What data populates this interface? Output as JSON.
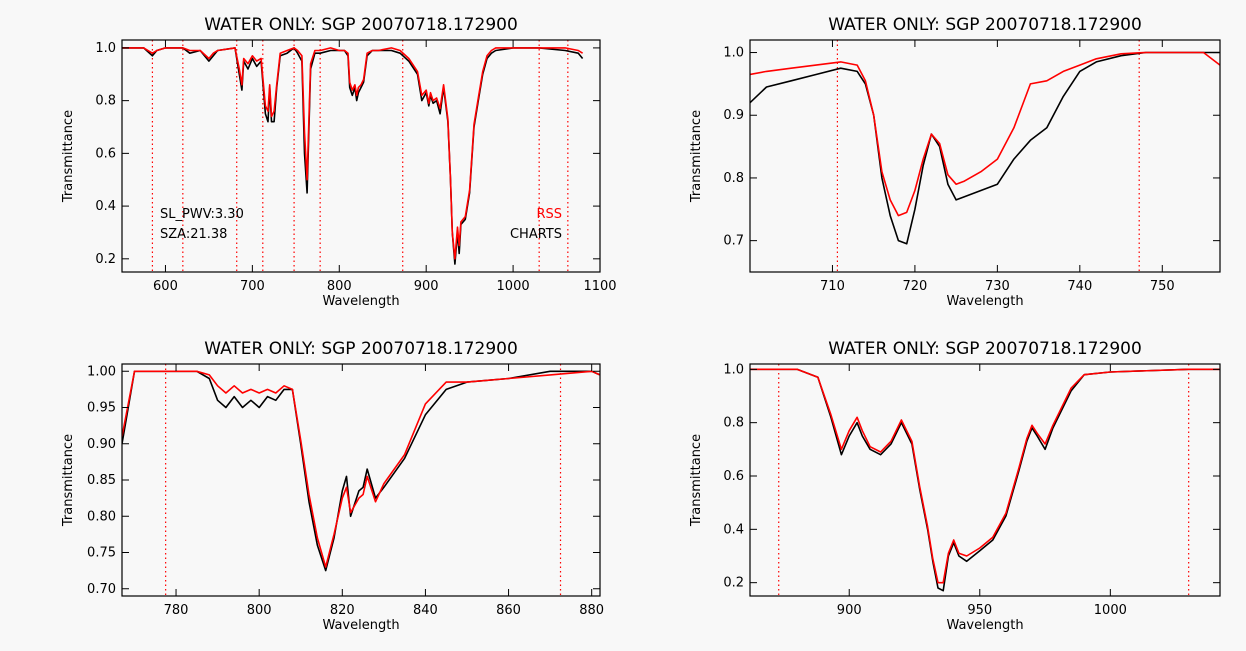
{
  "chart_data": [
    {
      "type": "line",
      "title": "WATER ONLY: SGP 20070718.172900",
      "xlabel": "Wavelength",
      "ylabel": "Transmittance",
      "xlim": [
        550,
        1100
      ],
      "ylim": [
        0.15,
        1.03
      ],
      "xticks": [
        "600",
        "700",
        "800",
        "900",
        "1000",
        "1100"
      ],
      "yticks": [
        "0.2",
        "0.4",
        "0.6",
        "0.8",
        "1.0"
      ],
      "vlines": [
        585,
        620,
        682,
        712,
        748,
        778,
        873,
        1030,
        1063
      ],
      "annotations": [
        {
          "text": "SL_PWV:3.30",
          "color": "#000000",
          "anchor": "left"
        },
        {
          "text": "SZA:21.38",
          "color": "#000000",
          "anchor": "left"
        },
        {
          "text": "RSS",
          "color": "#ff0000",
          "anchor": "right"
        },
        {
          "text": "CHARTS",
          "color": "#000000",
          "anchor": "right"
        }
      ],
      "series": [
        {
          "name": "CHARTS",
          "color": "#000000",
          "x": [
            550,
            575,
            585,
            590,
            600,
            620,
            628,
            640,
            650,
            655,
            660,
            680,
            685,
            688,
            690,
            695,
            700,
            705,
            710,
            715,
            718,
            720,
            722,
            725,
            728,
            732,
            740,
            748,
            752,
            757,
            760,
            763,
            767,
            772,
            778,
            790,
            800,
            806,
            810,
            812,
            815,
            818,
            820,
            822,
            825,
            828,
            832,
            838,
            845,
            860,
            870,
            880,
            890,
            895,
            900,
            903,
            905,
            908,
            912,
            916,
            920,
            925,
            928,
            930,
            933,
            936,
            938,
            940,
            945,
            950,
            955,
            960,
            965,
            970,
            975,
            980,
            1000,
            1030,
            1060,
            1075,
            1080
          ],
          "y": [
            1.0,
            1.0,
            0.97,
            0.99,
            1.0,
            1.0,
            0.98,
            0.99,
            0.95,
            0.97,
            0.99,
            1.0,
            0.9,
            0.84,
            0.95,
            0.92,
            0.96,
            0.93,
            0.95,
            0.75,
            0.72,
            0.85,
            0.72,
            0.72,
            0.85,
            0.97,
            0.98,
            1.0,
            0.98,
            0.95,
            0.6,
            0.45,
            0.92,
            0.98,
            0.98,
            0.99,
            0.99,
            0.99,
            0.97,
            0.85,
            0.82,
            0.85,
            0.8,
            0.83,
            0.85,
            0.87,
            0.97,
            0.99,
            0.99,
            0.99,
            0.98,
            0.95,
            0.9,
            0.8,
            0.83,
            0.78,
            0.82,
            0.79,
            0.8,
            0.75,
            0.85,
            0.72,
            0.5,
            0.3,
            0.18,
            0.3,
            0.22,
            0.33,
            0.35,
            0.45,
            0.7,
            0.8,
            0.9,
            0.96,
            0.98,
            0.99,
            1.0,
            1.0,
            0.99,
            0.98,
            0.96
          ]
        },
        {
          "name": "RSS",
          "color": "#ff0000",
          "x": [
            550,
            575,
            585,
            590,
            600,
            620,
            628,
            640,
            650,
            655,
            660,
            680,
            685,
            688,
            690,
            695,
            700,
            705,
            710,
            715,
            718,
            720,
            722,
            725,
            728,
            732,
            740,
            748,
            752,
            757,
            760,
            763,
            767,
            772,
            778,
            790,
            800,
            806,
            810,
            812,
            815,
            818,
            820,
            822,
            825,
            828,
            832,
            838,
            845,
            860,
            870,
            880,
            890,
            895,
            900,
            903,
            905,
            908,
            912,
            916,
            920,
            925,
            928,
            930,
            933,
            936,
            938,
            940,
            945,
            950,
            955,
            960,
            965,
            970,
            975,
            980,
            1000,
            1030,
            1060,
            1075,
            1080
          ],
          "y": [
            1.0,
            1.0,
            0.98,
            0.99,
            1.0,
            1.0,
            0.99,
            0.99,
            0.96,
            0.98,
            0.99,
            1.0,
            0.92,
            0.86,
            0.96,
            0.94,
            0.97,
            0.95,
            0.96,
            0.78,
            0.76,
            0.86,
            0.74,
            0.76,
            0.86,
            0.98,
            0.99,
            1.0,
            0.99,
            0.97,
            0.68,
            0.5,
            0.94,
            0.99,
            0.99,
            1.0,
            0.99,
            0.99,
            0.98,
            0.87,
            0.84,
            0.86,
            0.82,
            0.85,
            0.86,
            0.88,
            0.98,
            0.99,
            0.99,
            1.0,
            0.99,
            0.96,
            0.91,
            0.82,
            0.84,
            0.79,
            0.83,
            0.8,
            0.81,
            0.77,
            0.86,
            0.73,
            0.5,
            0.3,
            0.2,
            0.32,
            0.25,
            0.34,
            0.36,
            0.46,
            0.71,
            0.81,
            0.91,
            0.97,
            0.99,
            1.0,
            1.0,
            1.0,
            1.0,
            0.99,
            0.98
          ]
        }
      ]
    },
    {
      "type": "line",
      "title": "WATER ONLY: SGP 20070718.172900",
      "xlabel": "Wavelength",
      "ylabel": "Transmittance",
      "xlim": [
        700,
        757
      ],
      "ylim": [
        0.65,
        1.02
      ],
      "xticks": [
        "710",
        "720",
        "730",
        "740",
        "750"
      ],
      "yticks": [
        "0.7",
        "0.8",
        "0.9",
        "1.0"
      ],
      "vlines": [
        710.6,
        747.2
      ],
      "annotations": [],
      "series": [
        {
          "name": "CHARTS",
          "color": "#000000",
          "x": [
            700,
            702,
            705,
            708,
            711,
            713,
            714,
            715,
            716,
            717,
            718,
            719,
            720,
            721,
            722,
            723,
            724,
            725,
            726,
            728,
            730,
            732,
            734,
            736,
            738,
            740,
            742,
            745,
            748,
            750,
            755,
            757
          ],
          "y": [
            0.92,
            0.945,
            0.955,
            0.965,
            0.975,
            0.97,
            0.95,
            0.9,
            0.8,
            0.74,
            0.7,
            0.695,
            0.75,
            0.82,
            0.87,
            0.85,
            0.79,
            0.765,
            0.77,
            0.78,
            0.79,
            0.83,
            0.86,
            0.88,
            0.93,
            0.97,
            0.985,
            0.995,
            1.0,
            1.0,
            1.0,
            1.0
          ]
        },
        {
          "name": "RSS",
          "color": "#ff0000",
          "x": [
            700,
            702,
            705,
            708,
            711,
            713,
            714,
            715,
            716,
            717,
            718,
            719,
            720,
            721,
            722,
            723,
            724,
            725,
            726,
            728,
            730,
            732,
            734,
            736,
            738,
            740,
            742,
            745,
            748,
            750,
            755,
            757
          ],
          "y": [
            0.965,
            0.97,
            0.975,
            0.98,
            0.985,
            0.98,
            0.955,
            0.9,
            0.81,
            0.765,
            0.74,
            0.745,
            0.78,
            0.83,
            0.87,
            0.855,
            0.805,
            0.79,
            0.795,
            0.81,
            0.83,
            0.88,
            0.95,
            0.955,
            0.97,
            0.98,
            0.99,
            0.998,
            1.0,
            1.0,
            1.0,
            0.98
          ]
        }
      ]
    },
    {
      "type": "line",
      "title": "WATER ONLY: SGP 20070718.172900",
      "xlabel": "Wavelength",
      "ylabel": "Transmittance",
      "xlim": [
        767,
        882
      ],
      "ylim": [
        0.69,
        1.01
      ],
      "xticks": [
        "780",
        "800",
        "820",
        "840",
        "860",
        "880"
      ],
      "yticks": [
        "0.70",
        "0.75",
        "0.80",
        "0.85",
        "0.90",
        "0.95",
        "1.00"
      ],
      "vlines": [
        777.5,
        872.5
      ],
      "annotations": [],
      "series": [
        {
          "name": "CHARTS",
          "color": "#000000",
          "x": [
            767,
            770,
            775,
            780,
            785,
            788,
            790,
            792,
            794,
            796,
            798,
            800,
            802,
            804,
            806,
            808,
            810,
            812,
            814,
            816,
            818,
            820,
            821,
            822,
            824,
            825,
            826,
            828,
            830,
            835,
            840,
            845,
            850,
            860,
            870,
            880,
            882
          ],
          "y": [
            0.9,
            1.0,
            1.0,
            1.0,
            1.0,
            0.99,
            0.96,
            0.95,
            0.965,
            0.95,
            0.96,
            0.95,
            0.965,
            0.96,
            0.975,
            0.975,
            0.9,
            0.82,
            0.76,
            0.725,
            0.77,
            0.835,
            0.855,
            0.8,
            0.835,
            0.84,
            0.865,
            0.825,
            0.84,
            0.88,
            0.94,
            0.975,
            0.985,
            0.99,
            1.0,
            1.0,
            0.995
          ]
        },
        {
          "name": "RSS",
          "color": "#ff0000",
          "x": [
            767,
            770,
            775,
            780,
            785,
            788,
            790,
            792,
            794,
            796,
            798,
            800,
            802,
            804,
            806,
            808,
            810,
            812,
            814,
            816,
            818,
            820,
            821,
            822,
            824,
            825,
            826,
            828,
            830,
            835,
            840,
            845,
            850,
            860,
            870,
            880,
            882
          ],
          "y": [
            0.91,
            1.0,
            1.0,
            1.0,
            1.0,
            0.995,
            0.98,
            0.97,
            0.98,
            0.97,
            0.975,
            0.97,
            0.975,
            0.97,
            0.98,
            0.975,
            0.905,
            0.83,
            0.77,
            0.73,
            0.775,
            0.825,
            0.84,
            0.805,
            0.825,
            0.83,
            0.855,
            0.82,
            0.845,
            0.885,
            0.955,
            0.985,
            0.985,
            0.99,
            0.995,
            1.0,
            0.995
          ]
        }
      ]
    },
    {
      "type": "line",
      "title": "WATER ONLY: SGP 20070718.172900",
      "xlabel": "Wavelength",
      "ylabel": "Transmittance",
      "xlim": [
        862,
        1042
      ],
      "ylim": [
        0.15,
        1.02
      ],
      "xticks": [
        "900",
        "950",
        "1000"
      ],
      "yticks": [
        "0.2",
        "0.4",
        "0.6",
        "0.8",
        "1.0"
      ],
      "vlines": [
        873,
        1030
      ],
      "annotations": [],
      "series": [
        {
          "name": "CHARTS",
          "color": "#000000",
          "x": [
            862,
            880,
            888,
            893,
            897,
            900,
            903,
            905,
            908,
            912,
            916,
            920,
            924,
            927,
            930,
            932,
            934,
            936,
            938,
            940,
            942,
            945,
            950,
            955,
            960,
            965,
            968,
            970,
            972,
            975,
            978,
            985,
            990,
            1000,
            1030,
            1042
          ],
          "y": [
            1.0,
            1.0,
            0.97,
            0.82,
            0.68,
            0.75,
            0.8,
            0.75,
            0.7,
            0.68,
            0.72,
            0.8,
            0.72,
            0.55,
            0.4,
            0.28,
            0.18,
            0.17,
            0.3,
            0.35,
            0.3,
            0.28,
            0.32,
            0.36,
            0.45,
            0.62,
            0.73,
            0.78,
            0.75,
            0.7,
            0.78,
            0.92,
            0.98,
            0.99,
            1.0,
            1.0
          ]
        },
        {
          "name": "RSS",
          "color": "#ff0000",
          "x": [
            862,
            880,
            888,
            893,
            897,
            900,
            903,
            905,
            908,
            912,
            916,
            920,
            924,
            927,
            930,
            932,
            934,
            936,
            938,
            940,
            942,
            945,
            950,
            955,
            960,
            965,
            968,
            970,
            972,
            975,
            978,
            985,
            990,
            1000,
            1030,
            1042
          ],
          "y": [
            1.0,
            1.0,
            0.97,
            0.83,
            0.7,
            0.77,
            0.82,
            0.77,
            0.71,
            0.69,
            0.73,
            0.81,
            0.73,
            0.56,
            0.41,
            0.29,
            0.2,
            0.2,
            0.31,
            0.36,
            0.31,
            0.3,
            0.33,
            0.37,
            0.46,
            0.63,
            0.74,
            0.79,
            0.76,
            0.72,
            0.79,
            0.93,
            0.98,
            0.99,
            1.0,
            1.0
          ]
        }
      ]
    }
  ]
}
